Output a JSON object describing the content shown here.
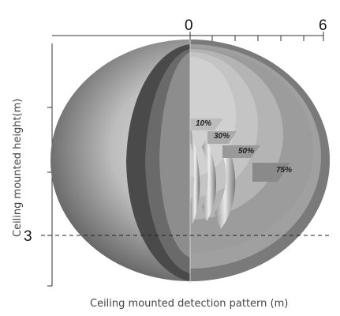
{
  "axes": {
    "x_label": "Ceiling mounted detection pattern (m)",
    "y_label": "Ceiling mounted height(m)",
    "x_ticks": [
      "0",
      "6"
    ],
    "y_ticks": [
      "3"
    ]
  },
  "zones": [
    {
      "label": "10%",
      "color": "#d0d0d0"
    },
    {
      "label": "30%",
      "color": "#c4c4c4"
    },
    {
      "label": "50%",
      "color": "#b4b4b4"
    },
    {
      "label": "75%",
      "color": "#9c9c9c"
    }
  ],
  "reference_line": {
    "height_m": 3,
    "style": "dashed"
  }
}
